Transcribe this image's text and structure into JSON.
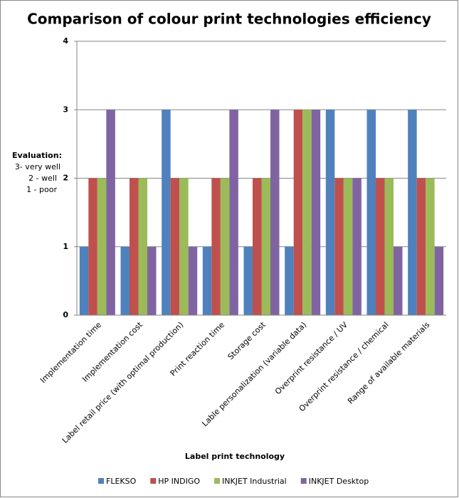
{
  "chart_data": {
    "type": "bar",
    "title": "Comparison of colour print technologies efficiency",
    "xlabel": "Label print technology",
    "ylabel": [
      "Evaluation:",
      "3- very well",
      "2 - well",
      "1 - poor"
    ],
    "categories": [
      "Implementation time",
      "Implementation cost",
      "Label retail price (with optimal production)",
      "Print reaction time",
      "Storage cost",
      "Lable personalization (variable data)",
      "Overprint resistance / UV",
      "Overprint resistance / chemical",
      "Range of available materials"
    ],
    "series": [
      {
        "name": "FLEKSO",
        "color": "#4f81bd",
        "values": [
          1,
          1,
          3,
          1,
          1,
          1,
          3,
          3,
          3
        ]
      },
      {
        "name": "HP INDIGO",
        "color": "#c0504d",
        "values": [
          2,
          2,
          2,
          2,
          2,
          3,
          2,
          2,
          2
        ]
      },
      {
        "name": "INKJET Industrial",
        "color": "#9bbb59",
        "values": [
          2,
          2,
          2,
          2,
          2,
          3,
          2,
          2,
          2
        ]
      },
      {
        "name": "INKJET Desktop",
        "color": "#8064a2",
        "values": [
          3,
          1,
          1,
          3,
          3,
          3,
          2,
          1,
          1
        ]
      }
    ],
    "ylim": [
      0,
      4
    ],
    "yticks": [
      0,
      1,
      2,
      3,
      4
    ],
    "grid": true,
    "legend": "bottom"
  }
}
